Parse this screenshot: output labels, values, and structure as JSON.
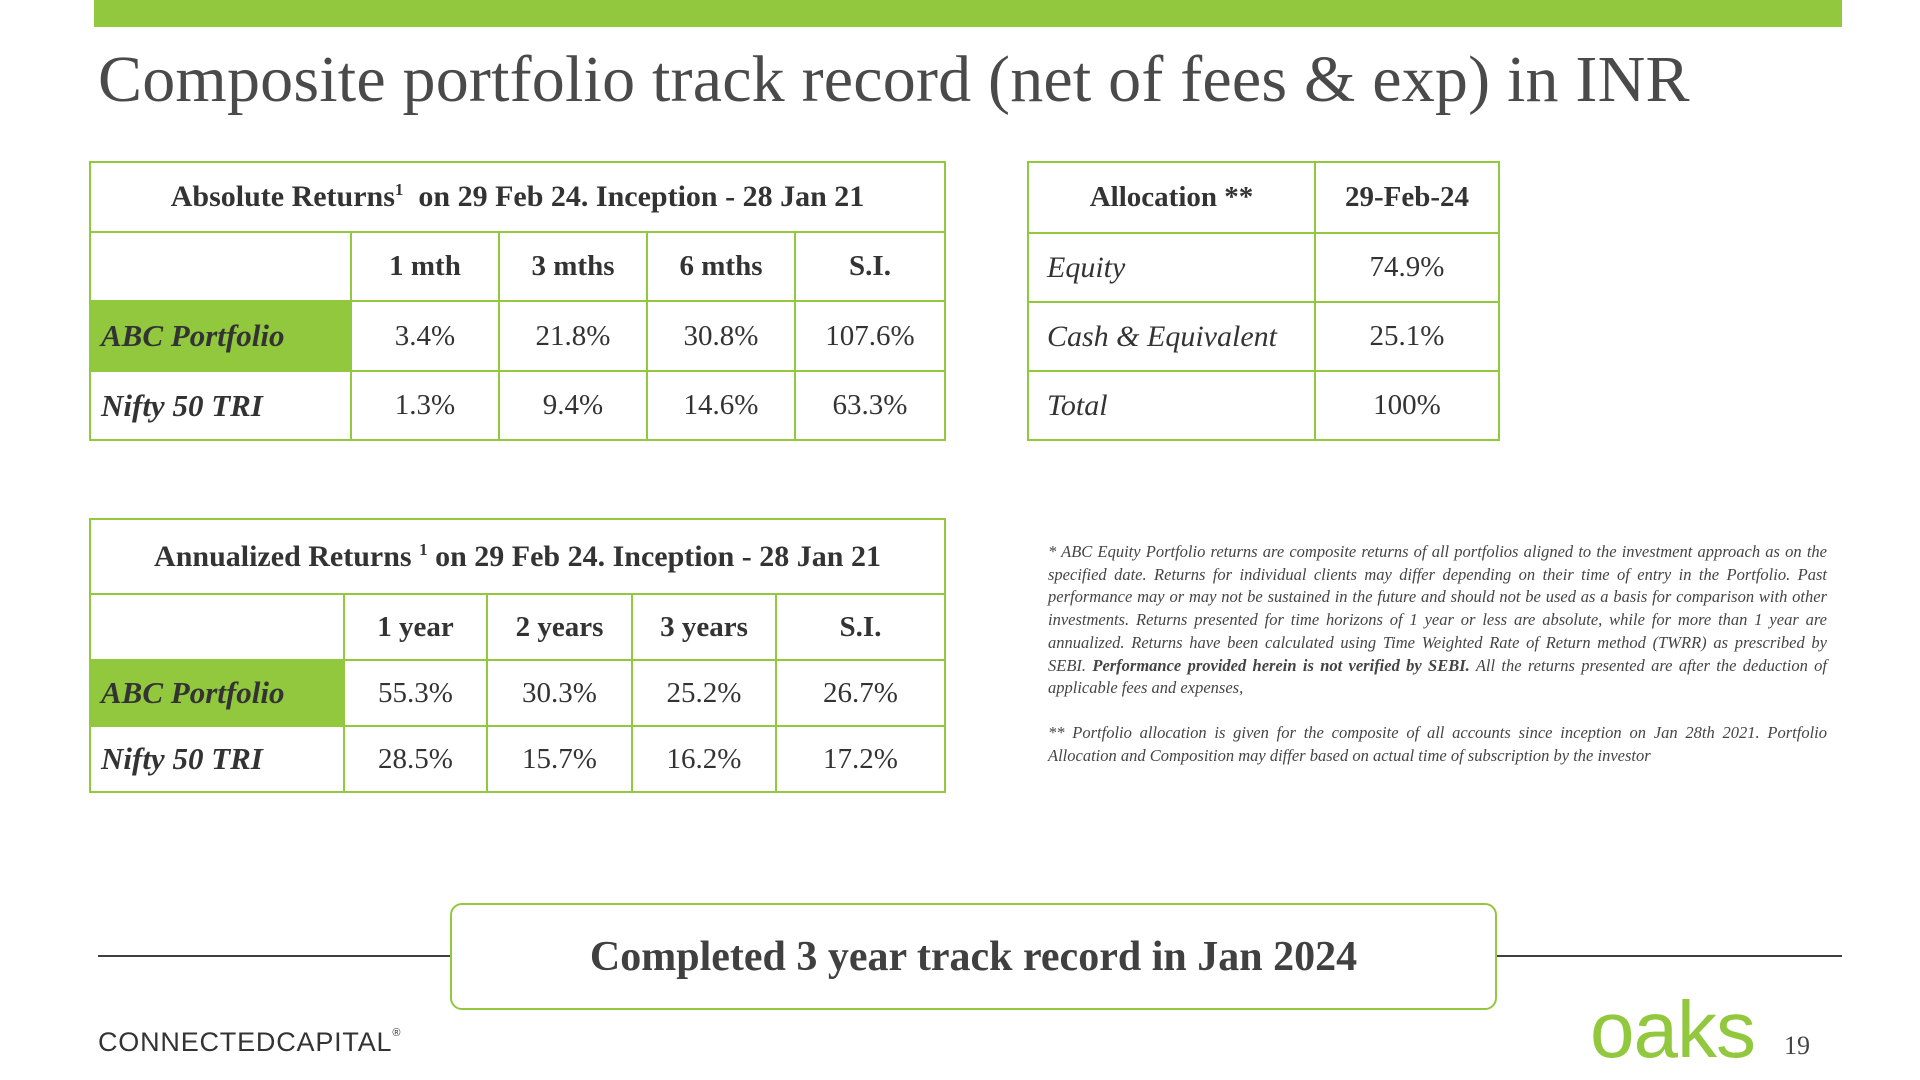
{
  "title": "Composite portfolio track record (net of fees & exp) in INR",
  "absolute": {
    "header": "Absolute Returns",
    "sup": "1",
    "header_rest": "on 29 Feb 24. Inception - 28 Jan 21",
    "columns": [
      "1 mth",
      "3 mths",
      "6 mths",
      "S.I."
    ],
    "rows": [
      {
        "label": "ABC Portfolio",
        "values": [
          "3.4%",
          "21.8%",
          "30.8%",
          "107.6%"
        ]
      },
      {
        "label": "Nifty 50 TRI",
        "values": [
          "1.3%",
          "9.4%",
          "14.6%",
          "63.3%"
        ]
      }
    ]
  },
  "annualized": {
    "header": "Annualized Returns",
    "sup": "1",
    "header_rest": "on 29 Feb 24. Inception - 28 Jan 21",
    "columns": [
      "1 year",
      "2 years",
      "3 years",
      "S.I."
    ],
    "rows": [
      {
        "label": "ABC Portfolio",
        "values": [
          "55.3%",
          "30.3%",
          "25.2%",
          "26.7%"
        ]
      },
      {
        "label": "Nifty 50 TRI",
        "values": [
          "28.5%",
          "15.7%",
          "16.2%",
          "17.2%"
        ]
      }
    ]
  },
  "allocation": {
    "header": "Allocation **",
    "date": "29-Feb-24",
    "rows": [
      {
        "label": "Equity",
        "value": "74.9%"
      },
      {
        "label": "Cash & Equivalent",
        "value": "25.1%"
      },
      {
        "label": "Total",
        "value": "100%"
      }
    ]
  },
  "notes": {
    "note1_pre": "* ABC  Equity Portfolio  returns are composite returns of all portfolios aligned to the investment approach as on the specified date. Returns for individual clients may differ depending on their time of entry in the Portfolio. Past performance may or may not be sustained in the future and should not be used as a basis for comparison with other investments. Returns presented for time horizons of 1 year or less are absolute, while for more than 1 year are annualized. Returns have been calculated using Time Weighted Rate of Return method (TWRR) as prescribed by SEBI.",
    "note1_bold": "Performance provided herein is not verified by SEBI.",
    "note1_post": "All the returns presented are after the deduction of applicable fees and expenses,",
    "note2": "** Portfolio allocation is given for the composite of all accounts since inception on Jan 28th 2021. Portfolio Allocation and Composition may differ based on actual time of subscription by the investor"
  },
  "callout": "Completed 3 year track record in Jan 2024",
  "footer": {
    "logo_part1": "CONNECTED",
    "logo_part2": "CAPITAL",
    "logo_mark": "®",
    "brand": "oaks",
    "page_number": "19"
  },
  "colors": {
    "accent": "#92c83e",
    "text": "#3f3f3f"
  }
}
